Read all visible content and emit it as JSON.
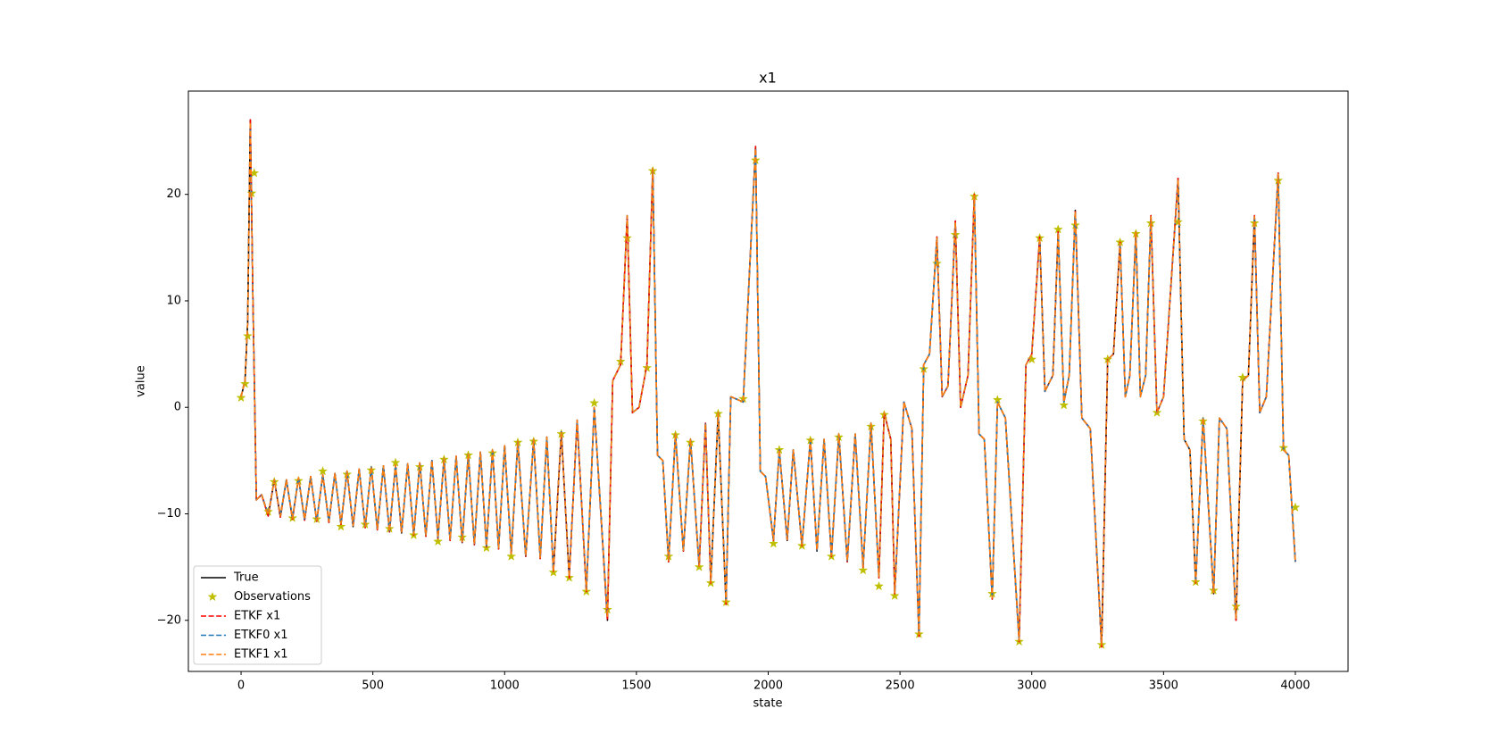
{
  "chart_data": {
    "type": "line",
    "title": "x1",
    "x_label": "state",
    "y_label": "value",
    "xlim": [
      -200,
      4200
    ],
    "ylim": [
      -24.8,
      29.7
    ],
    "xticks": [
      0,
      500,
      1000,
      1500,
      2000,
      2500,
      3000,
      3500,
      4000
    ],
    "yticks": [
      {
        "value": -20,
        "label": "−20"
      },
      {
        "value": -10,
        "label": "−10"
      },
      0,
      10,
      20
    ],
    "legend": "lower left",
    "x": [
      0,
      15,
      25,
      35,
      45,
      58,
      78,
      103,
      126,
      149,
      172,
      195,
      218,
      241,
      264,
      287,
      310,
      333,
      356,
      379,
      402,
      425,
      448,
      471,
      494,
      517,
      540,
      563,
      586,
      609,
      632,
      655,
      678,
      701,
      724,
      747,
      770,
      793,
      816,
      839,
      862,
      885,
      908,
      931,
      954,
      977,
      1000,
      1025,
      1050,
      1080,
      1110,
      1135,
      1160,
      1185,
      1215,
      1245,
      1275,
      1310,
      1340,
      1390,
      1410,
      1440,
      1465,
      1485,
      1510,
      1540,
      1562,
      1580,
      1600,
      1622,
      1648,
      1678,
      1705,
      1738,
      1762,
      1782,
      1810,
      1840,
      1858,
      1905,
      1952,
      1970,
      1990,
      2020,
      2042,
      2072,
      2095,
      2128,
      2160,
      2185,
      2212,
      2240,
      2268,
      2300,
      2330,
      2360,
      2390,
      2420,
      2440,
      2465,
      2480,
      2515,
      2545,
      2572,
      2590,
      2612,
      2640,
      2660,
      2682,
      2710,
      2730,
      2758,
      2782,
      2800,
      2820,
      2850,
      2870,
      2900,
      2952,
      2978,
      3000,
      3030,
      3050,
      3080,
      3100,
      3122,
      3142,
      3165,
      3190,
      3222,
      3265,
      3288,
      3310,
      3335,
      3355,
      3372,
      3395,
      3412,
      3432,
      3452,
      3475,
      3500,
      3555,
      3578,
      3600,
      3622,
      3650,
      3690,
      3712,
      3740,
      3775,
      3800,
      3822,
      3845,
      3865,
      3890,
      3935,
      3955,
      3975,
      4000
    ],
    "series": [
      {
        "name": "True",
        "color": "#000000",
        "style": "solid",
        "values": [
          1,
          2.5,
          8,
          27,
          10,
          -8.7,
          -8.2,
          -10.2,
          -6.8,
          -10.3,
          -6.8,
          -10.5,
          -6.6,
          -10.6,
          -6.5,
          -10.7,
          -6.3,
          -10.8,
          -6.2,
          -11,
          -6,
          -11.2,
          -5.8,
          -11.3,
          -5.6,
          -11.5,
          -5.5,
          -11.7,
          -5.4,
          -11.8,
          -5.3,
          -12,
          -5.2,
          -12.1,
          -5,
          -12.3,
          -4.8,
          -12.5,
          -4.6,
          -12.7,
          -4.4,
          -12.9,
          -4.2,
          -13.1,
          -4,
          -13.3,
          -3.6,
          -13.8,
          -3.2,
          -14,
          -3,
          -14.2,
          -2.8,
          -15.5,
          -2.3,
          -16,
          -1.2,
          -17.3,
          0,
          -20,
          2.5,
          4,
          18,
          -0.5,
          0,
          4,
          22.5,
          -4.5,
          -5,
          -14.5,
          -2.5,
          -13.5,
          -3,
          -15,
          -1.5,
          -16.5,
          -0.5,
          -18.5,
          1,
          0.5,
          24.5,
          -6,
          -6.5,
          -12.5,
          -4,
          -12.5,
          -4,
          -13,
          -3,
          -13.5,
          -3,
          -14,
          -2.5,
          -14.5,
          -2.5,
          -15,
          -1.5,
          -16,
          -0.5,
          -3,
          -17.5,
          0.5,
          -2,
          -21.5,
          4,
          5,
          16,
          1,
          2,
          17.5,
          0,
          3,
          20,
          -2.5,
          -3,
          -18,
          0.5,
          -1,
          -22,
          4,
          5,
          16,
          1.5,
          3,
          16.5,
          0.5,
          3,
          18.5,
          -1,
          -2,
          -22.5,
          4.5,
          5,
          15.5,
          1,
          3,
          16.5,
          1,
          3,
          18,
          -0.5,
          1,
          21.5,
          -3,
          -4,
          -16.5,
          -1,
          -17.5,
          -1,
          -2,
          -20,
          2.5,
          3,
          18,
          -0.5,
          1,
          22,
          -4,
          -4.5,
          -14.5
        ]
      },
      {
        "name": "Observations",
        "color": "#bfbf00",
        "style": "none",
        "marker": "star",
        "x": [
          0,
          15,
          25,
          40,
          50,
          103,
          126,
          195,
          218,
          287,
          310,
          379,
          402,
          471,
          494,
          563,
          586,
          655,
          678,
          747,
          770,
          839,
          862,
          931,
          954,
          1025,
          1050,
          1110,
          1185,
          1215,
          1245,
          1310,
          1340,
          1390,
          1440,
          1465,
          1540,
          1562,
          1622,
          1648,
          1705,
          1738,
          1782,
          1810,
          1840,
          1905,
          1952,
          2020,
          2042,
          2128,
          2160,
          2240,
          2268,
          2360,
          2390,
          2420,
          2440,
          2480,
          2572,
          2590,
          2640,
          2710,
          2782,
          2850,
          2870,
          2952,
          3000,
          3030,
          3100,
          3122,
          3165,
          3265,
          3288,
          3335,
          3395,
          3452,
          3475,
          3555,
          3622,
          3650,
          3690,
          3775,
          3800,
          3845,
          3935,
          3955,
          4000
        ],
        "values": [
          0.9,
          2.2,
          6.7,
          20.1,
          22,
          -9.8,
          -7,
          -10.4,
          -6.9,
          -10.5,
          -6,
          -11.2,
          -6.3,
          -11,
          -5.9,
          -11.4,
          -5.2,
          -12,
          -5.6,
          -12.6,
          -4.9,
          -12.2,
          -4.5,
          -13.2,
          -4.3,
          -14,
          -3.3,
          -3.2,
          -15.5,
          -2.5,
          -16,
          -17.3,
          0.4,
          -19,
          4.3,
          15.9,
          3.7,
          22.2,
          -14,
          -2.6,
          -3.3,
          -15,
          -16.5,
          -0.6,
          -18.3,
          0.8,
          23.2,
          -12.8,
          -4,
          -13,
          -3.1,
          -14,
          -2.8,
          -15.3,
          -1.8,
          -16.8,
          -0.7,
          -17.7,
          -21.3,
          3.6,
          13.5,
          16.2,
          19.8,
          -17.5,
          0.7,
          -22,
          4.5,
          15.9,
          16.7,
          0.2,
          17.1,
          -22.3,
          4.5,
          15.5,
          16.3,
          17.3,
          -0.5,
          17.4,
          -16.4,
          -1.3,
          -17.2,
          -18.7,
          2.8,
          17.3,
          21.3,
          -3.8,
          -9.4
        ]
      },
      {
        "name": "ETKF x1",
        "color": "#ff0000",
        "style": "dashed",
        "values": [
          1,
          2.5,
          8,
          27,
          10,
          -8.7,
          -8.2,
          -10.2,
          -6.8,
          -10.3,
          -6.8,
          -10.5,
          -6.6,
          -10.6,
          -6.5,
          -10.7,
          -6.3,
          -10.8,
          -6.2,
          -11,
          -6,
          -11.2,
          -5.8,
          -11.3,
          -5.6,
          -11.5,
          -5.5,
          -11.7,
          -5.4,
          -11.8,
          -5.3,
          -12,
          -5.2,
          -12.1,
          -5,
          -12.3,
          -4.8,
          -12.5,
          -4.6,
          -12.7,
          -4.4,
          -12.9,
          -4.2,
          -13.1,
          -4,
          -13.3,
          -3.6,
          -13.8,
          -3.2,
          -14,
          -3,
          -14.2,
          -2.8,
          -15.5,
          -2.3,
          -16,
          -1.2,
          -17.3,
          0,
          -20,
          2.5,
          4,
          18,
          -0.5,
          0,
          4,
          22.5,
          -4.5,
          -5,
          -14.5,
          -2.5,
          -13.5,
          -3,
          -15,
          -1.5,
          -16.5,
          -0.5,
          -18.5,
          1,
          0.5,
          24.5,
          -6,
          -6.5,
          -12.5,
          -4,
          -12.5,
          -4,
          -13,
          -3,
          -13.5,
          -3,
          -14,
          -2.5,
          -14.5,
          -2.5,
          -15,
          -1.5,
          -16,
          -0.5,
          -3,
          -17.5,
          0.5,
          -2,
          -21.5,
          4,
          5,
          16,
          1,
          2,
          17.5,
          0,
          3,
          20,
          -2.5,
          -3,
          -18,
          0.5,
          -1,
          -22,
          4,
          5,
          16,
          1.5,
          3,
          16.5,
          0.5,
          3,
          18.5,
          -1,
          -2,
          -22.5,
          4.5,
          5,
          15.5,
          1,
          3,
          16.5,
          1,
          3,
          18,
          -0.5,
          1,
          21.5,
          -3,
          -4,
          -16.5,
          -1,
          -17.5,
          -1,
          -2,
          -20,
          2.5,
          3,
          18,
          -0.5,
          1,
          22,
          -4,
          -4.5,
          -14.5
        ]
      },
      {
        "name": "ETKF0 x1",
        "color": "#1f77b4",
        "style": "dashed",
        "values": [
          1,
          2.5,
          8,
          26.5,
          10,
          -8.7,
          -8.2,
          -10,
          -6.8,
          -10.1,
          -6.8,
          -10.3,
          -6.6,
          -10.5,
          -6.5,
          -10.6,
          -6.3,
          -10.7,
          -6.2,
          -10.9,
          -6,
          -11.1,
          -5.8,
          -11.2,
          -5.6,
          -11.4,
          -5.5,
          -11.6,
          -5.4,
          -11.7,
          -5.3,
          -11.9,
          -5.2,
          -12,
          -5,
          -12.2,
          -4.8,
          -12.4,
          -4.6,
          -12.6,
          -4.4,
          -12.8,
          -4.2,
          -13,
          -4,
          -13.2,
          -3.6,
          -13.7,
          -3.2,
          -13.9,
          -3,
          -14.1,
          -2.8,
          -15.3,
          -2.3,
          -15.8,
          -1.2,
          -17.1,
          0,
          -19.5,
          2.5,
          4,
          18,
          -0.5,
          0,
          4,
          22.3,
          -4.5,
          -5,
          -14.3,
          -2.5,
          -13.4,
          -3,
          -14.8,
          -1.5,
          -16.3,
          -0.5,
          -18.2,
          1,
          0.5,
          24.2,
          -6,
          -6.5,
          -12.4,
          -4,
          -12.4,
          -4,
          -12.9,
          -3,
          -13.4,
          -3,
          -13.9,
          -2.5,
          -14.4,
          -2.5,
          -14.9,
          -1.5,
          -15.8,
          -0.5,
          -3,
          -17.3,
          0.5,
          -2,
          -21.2,
          4,
          5,
          15.8,
          1,
          2,
          17.3,
          0,
          3,
          19.8,
          -2.5,
          -3,
          -17.8,
          0.5,
          -1,
          -21.8,
          4,
          5,
          15.8,
          1.5,
          3,
          16.3,
          0.5,
          3,
          18.3,
          -1,
          -2,
          -22.2,
          4.5,
          5,
          15.3,
          1,
          3,
          16.3,
          1,
          3,
          17.8,
          -0.5,
          1,
          21.3,
          -3,
          -4,
          -16.3,
          -1,
          -17.3,
          -1,
          -2,
          -19.7,
          2.5,
          3,
          17.8,
          -0.5,
          1,
          21.8,
          -4,
          -4.5,
          -14.5
        ]
      },
      {
        "name": "ETKF1 x1",
        "color": "#ff7f0e",
        "style": "dashed",
        "values": [
          1,
          2.5,
          8,
          26.8,
          10,
          -8.7,
          -8.2,
          -10.1,
          -6.8,
          -10.2,
          -6.8,
          -10.4,
          -6.6,
          -10.5,
          -6.5,
          -10.6,
          -6.3,
          -10.7,
          -6.2,
          -10.9,
          -6,
          -11.1,
          -5.8,
          -11.2,
          -5.6,
          -11.4,
          -5.5,
          -11.6,
          -5.4,
          -11.7,
          -5.3,
          -11.9,
          -5.2,
          -12,
          -5,
          -12.2,
          -4.8,
          -12.4,
          -4.6,
          -12.6,
          -4.4,
          -12.8,
          -4.2,
          -13,
          -4,
          -13.2,
          -3.6,
          -13.7,
          -3.2,
          -13.9,
          -3,
          -14.1,
          -2.8,
          -15.4,
          -2.3,
          -15.9,
          -1.2,
          -17.2,
          0,
          -19.7,
          2.5,
          4,
          18,
          -0.5,
          0,
          4,
          22.4,
          -4.5,
          -5,
          -14.4,
          -2.5,
          -13.4,
          -3,
          -14.9,
          -1.5,
          -16.4,
          -0.5,
          -18.3,
          1,
          0.5,
          24.3,
          -6,
          -6.5,
          -12.4,
          -4,
          -12.4,
          -4,
          -12.9,
          -3,
          -13.4,
          -3,
          -13.9,
          -2.5,
          -14.4,
          -2.5,
          -14.9,
          -1.5,
          -15.9,
          -0.5,
          -3,
          -17.4,
          0.5,
          -2,
          -21.3,
          4,
          5,
          15.9,
          1,
          2,
          17.4,
          0,
          3,
          19.9,
          -2.5,
          -3,
          -17.9,
          0.5,
          -1,
          -21.9,
          4,
          5,
          15.9,
          1.5,
          3,
          16.4,
          0.5,
          3,
          18.4,
          -1,
          -2,
          -22.3,
          4.5,
          5,
          15.4,
          1,
          3,
          16.4,
          1,
          3,
          17.9,
          -0.5,
          1,
          21.4,
          -3,
          -4,
          -16.4,
          -1,
          -17.4,
          -1,
          -2,
          -19.8,
          2.5,
          3,
          17.9,
          -0.5,
          1,
          21.9,
          -4,
          -4.5,
          -14.5
        ]
      }
    ]
  }
}
